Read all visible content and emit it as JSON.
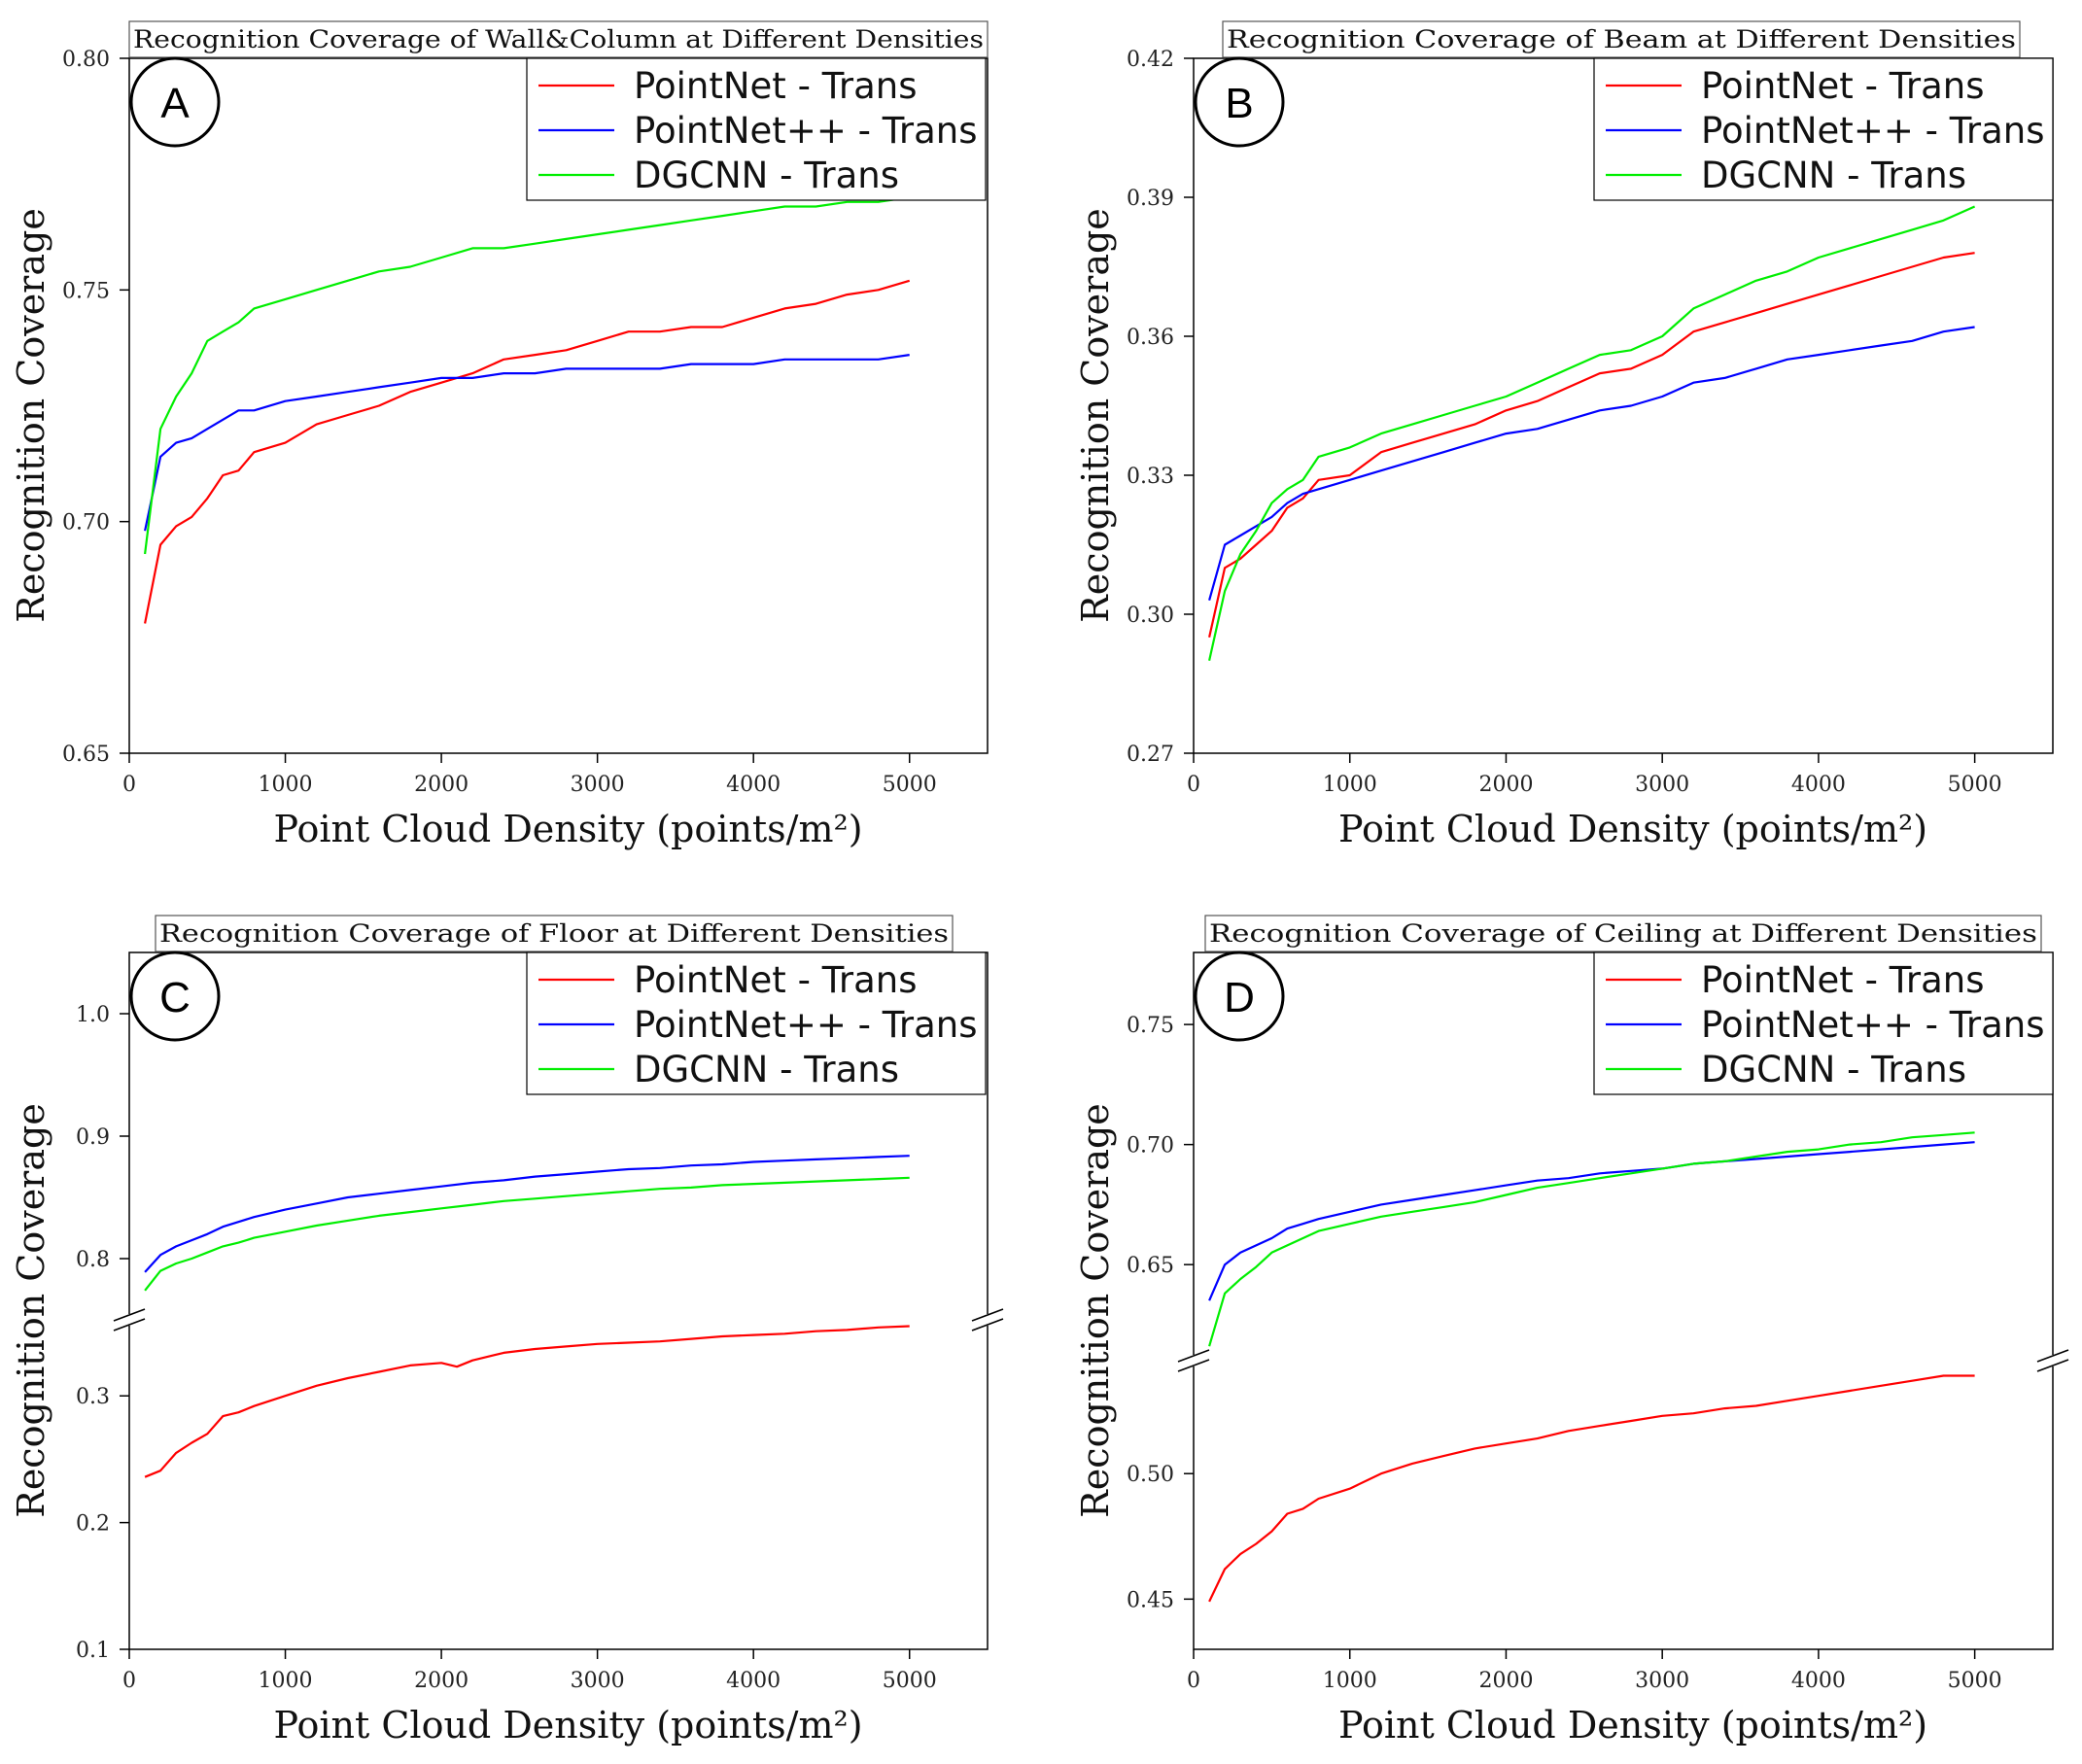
{
  "chart_data": [
    {
      "type": "line",
      "panel": "A",
      "title": "Recognition Coverage of Wall&Column at Different Densities",
      "xlabel": "Point Cloud Density (points/m²)",
      "ylabel": "Recognition Coverage",
      "xlim": [
        0,
        5500
      ],
      "ylim": [
        0.65,
        0.8
      ],
      "xticks": [
        0,
        1000,
        2000,
        3000,
        4000,
        5000
      ],
      "yticks": [
        0.65,
        0.7,
        0.75,
        0.8
      ],
      "ytick_labels": [
        "0.65",
        "0.70",
        "0.75",
        "0.80"
      ],
      "legend": "top-right",
      "series": [
        {
          "name": "PointNet - Trans",
          "color": "#ff0000",
          "x": [
            100,
            200,
            300,
            400,
            500,
            600,
            700,
            800,
            1000,
            1200,
            1400,
            1600,
            1800,
            2000,
            2200,
            2400,
            2600,
            2800,
            3000,
            3200,
            3400,
            3600,
            3800,
            4000,
            4200,
            4400,
            4600,
            4800,
            5000
          ],
          "y": [
            0.678,
            0.695,
            0.699,
            0.701,
            0.705,
            0.71,
            0.711,
            0.715,
            0.717,
            0.721,
            0.723,
            0.725,
            0.728,
            0.73,
            0.732,
            0.735,
            0.736,
            0.737,
            0.739,
            0.741,
            0.741,
            0.742,
            0.742,
            0.744,
            0.746,
            0.747,
            0.749,
            0.75,
            0.752
          ]
        },
        {
          "name": "PointNet++ - Trans",
          "color": "#0000ff",
          "x": [
            100,
            200,
            300,
            400,
            500,
            600,
            700,
            800,
            1000,
            1200,
            1400,
            1600,
            1800,
            2000,
            2200,
            2400,
            2600,
            2800,
            3000,
            3200,
            3400,
            3600,
            3800,
            4000,
            4200,
            4400,
            4600,
            4800,
            5000
          ],
          "y": [
            0.698,
            0.714,
            0.717,
            0.718,
            0.72,
            0.722,
            0.724,
            0.724,
            0.726,
            0.727,
            0.728,
            0.729,
            0.73,
            0.731,
            0.731,
            0.732,
            0.732,
            0.733,
            0.733,
            0.733,
            0.733,
            0.734,
            0.734,
            0.734,
            0.735,
            0.735,
            0.735,
            0.735,
            0.736
          ]
        },
        {
          "name": "DGCNN - Trans",
          "color": "#00ee00",
          "x": [
            100,
            200,
            300,
            400,
            500,
            600,
            700,
            800,
            1000,
            1200,
            1400,
            1600,
            1800,
            2000,
            2200,
            2400,
            2600,
            2800,
            3000,
            3200,
            3400,
            3600,
            3800,
            4000,
            4200,
            4400,
            4600,
            4800,
            5000
          ],
          "y": [
            0.693,
            0.72,
            0.727,
            0.732,
            0.739,
            0.741,
            0.743,
            0.746,
            0.748,
            0.75,
            0.752,
            0.754,
            0.755,
            0.757,
            0.759,
            0.759,
            0.76,
            0.761,
            0.762,
            0.763,
            0.764,
            0.765,
            0.766,
            0.767,
            0.768,
            0.768,
            0.769,
            0.769,
            0.77
          ]
        }
      ]
    },
    {
      "type": "line",
      "panel": "B",
      "title": "Recognition Coverage of Beam at Different Densities",
      "xlabel": "Point Cloud Density (points/m²)",
      "ylabel": "Recognition Coverage",
      "xlim": [
        0,
        5500
      ],
      "ylim": [
        0.27,
        0.42
      ],
      "xticks": [
        0,
        1000,
        2000,
        3000,
        4000,
        5000
      ],
      "yticks": [
        0.27,
        0.3,
        0.33,
        0.36,
        0.39,
        0.42
      ],
      "ytick_labels": [
        "0.27",
        "0.30",
        "0.33",
        "0.36",
        "0.39",
        "0.42"
      ],
      "legend": "top-right",
      "series": [
        {
          "name": "PointNet - Trans",
          "color": "#ff0000",
          "x": [
            100,
            200,
            300,
            400,
            500,
            600,
            700,
            800,
            1000,
            1200,
            1400,
            1600,
            1800,
            2000,
            2200,
            2400,
            2600,
            2800,
            3000,
            3200,
            3400,
            3600,
            3800,
            4000,
            4200,
            4400,
            4600,
            4800,
            5000
          ],
          "y": [
            0.295,
            0.31,
            0.312,
            0.315,
            0.318,
            0.323,
            0.325,
            0.329,
            0.33,
            0.335,
            0.337,
            0.339,
            0.341,
            0.344,
            0.346,
            0.349,
            0.352,
            0.353,
            0.356,
            0.361,
            0.363,
            0.365,
            0.367,
            0.369,
            0.371,
            0.373,
            0.375,
            0.377,
            0.378
          ]
        },
        {
          "name": "PointNet++ - Trans",
          "color": "#0000ff",
          "x": [
            100,
            200,
            300,
            400,
            500,
            600,
            700,
            800,
            1000,
            1200,
            1400,
            1600,
            1800,
            2000,
            2200,
            2400,
            2600,
            2800,
            3000,
            3200,
            3400,
            3600,
            3800,
            4000,
            4200,
            4400,
            4600,
            4800,
            5000
          ],
          "y": [
            0.303,
            0.315,
            0.317,
            0.319,
            0.321,
            0.324,
            0.326,
            0.327,
            0.329,
            0.331,
            0.333,
            0.335,
            0.337,
            0.339,
            0.34,
            0.342,
            0.344,
            0.345,
            0.347,
            0.35,
            0.351,
            0.353,
            0.355,
            0.356,
            0.357,
            0.358,
            0.359,
            0.361,
            0.362
          ]
        },
        {
          "name": "DGCNN - Trans",
          "color": "#00ee00",
          "x": [
            100,
            200,
            300,
            400,
            500,
            600,
            700,
            800,
            1000,
            1200,
            1400,
            1600,
            1800,
            2000,
            2200,
            2400,
            2600,
            2800,
            3000,
            3200,
            3400,
            3600,
            3800,
            4000,
            4200,
            4400,
            4600,
            4800,
            5000
          ],
          "y": [
            0.29,
            0.305,
            0.313,
            0.318,
            0.324,
            0.327,
            0.329,
            0.334,
            0.336,
            0.339,
            0.341,
            0.343,
            0.345,
            0.347,
            0.35,
            0.353,
            0.356,
            0.357,
            0.36,
            0.366,
            0.369,
            0.372,
            0.374,
            0.377,
            0.379,
            0.381,
            0.383,
            0.385,
            0.388
          ]
        }
      ]
    },
    {
      "type": "line",
      "panel": "C",
      "title": "Recognition Coverage of Floor at Different Densities",
      "xlabel": "Point Cloud Density (points/m²)",
      "ylabel": "Recognition Coverage",
      "xlim": [
        0,
        5500
      ],
      "broken_y_axis": true,
      "ylim_lower": [
        0.1,
        0.36
      ],
      "ylim_upper": [
        0.75,
        1.05
      ],
      "yticks": [
        0.1,
        0.2,
        0.3,
        0.8,
        0.9,
        1.0
      ],
      "ytick_labels": [
        "0.1",
        "0.2",
        "0.3",
        "0.8",
        "0.9",
        "1.0"
      ],
      "xticks": [
        0,
        1000,
        2000,
        3000,
        4000,
        5000
      ],
      "legend": "top-right",
      "series": [
        {
          "name": "PointNet - Trans",
          "color": "#ff0000",
          "x": [
            100,
            200,
            300,
            400,
            500,
            600,
            700,
            800,
            1000,
            1200,
            1400,
            1600,
            1800,
            2000,
            2100,
            2200,
            2400,
            2600,
            2800,
            3000,
            3200,
            3400,
            3600,
            3800,
            4000,
            4200,
            4400,
            4600,
            4800,
            5000
          ],
          "y": [
            0.236,
            0.241,
            0.255,
            0.263,
            0.27,
            0.284,
            0.287,
            0.292,
            0.3,
            0.308,
            0.314,
            0.319,
            0.324,
            0.326,
            0.323,
            0.328,
            0.334,
            0.337,
            0.339,
            0.341,
            0.342,
            0.343,
            0.345,
            0.347,
            0.348,
            0.349,
            0.351,
            0.352,
            0.354,
            0.355
          ]
        },
        {
          "name": "PointNet++ - Trans",
          "color": "#0000ff",
          "x": [
            100,
            200,
            300,
            400,
            500,
            600,
            700,
            800,
            1000,
            1200,
            1400,
            1600,
            1800,
            2000,
            2200,
            2400,
            2600,
            2800,
            3000,
            3200,
            3400,
            3600,
            3800,
            4000,
            4200,
            4400,
            4600,
            4800,
            5000
          ],
          "y": [
            0.789,
            0.803,
            0.81,
            0.815,
            0.82,
            0.826,
            0.83,
            0.834,
            0.84,
            0.845,
            0.85,
            0.853,
            0.856,
            0.859,
            0.862,
            0.864,
            0.867,
            0.869,
            0.871,
            0.873,
            0.874,
            0.876,
            0.877,
            0.879,
            0.88,
            0.881,
            0.882,
            0.883,
            0.884
          ]
        },
        {
          "name": "DGCNN - Trans",
          "color": "#00ee00",
          "x": [
            100,
            200,
            300,
            400,
            500,
            600,
            700,
            800,
            1000,
            1200,
            1400,
            1600,
            1800,
            2000,
            2200,
            2400,
            2600,
            2800,
            3000,
            3200,
            3400,
            3600,
            3800,
            4000,
            4200,
            4400,
            4600,
            4800,
            5000
          ],
          "y": [
            0.774,
            0.79,
            0.796,
            0.8,
            0.805,
            0.81,
            0.813,
            0.817,
            0.822,
            0.827,
            0.831,
            0.835,
            0.838,
            0.841,
            0.844,
            0.847,
            0.849,
            0.851,
            0.853,
            0.855,
            0.857,
            0.858,
            0.86,
            0.861,
            0.862,
            0.863,
            0.864,
            0.865,
            0.866
          ]
        }
      ]
    },
    {
      "type": "line",
      "panel": "D",
      "title": "Recognition Coverage of Ceiling at Different Densities",
      "xlabel": "Point Cloud Density (points/m²)",
      "ylabel": "Recognition Coverage",
      "xlim": [
        0,
        5500
      ],
      "broken_y_axis": true,
      "ylim_lower": [
        0.43,
        0.545
      ],
      "ylim_upper": [
        0.61,
        0.78
      ],
      "yticks": [
        0.45,
        0.5,
        0.65,
        0.7,
        0.75
      ],
      "ytick_labels": [
        "0.45",
        "0.50",
        "0.65",
        "0.70",
        "0.75"
      ],
      "xticks": [
        0,
        1000,
        2000,
        3000,
        4000,
        5000
      ],
      "legend": "top-right",
      "series": [
        {
          "name": "PointNet - Trans",
          "color": "#ff0000",
          "x": [
            100,
            200,
            300,
            400,
            500,
            600,
            700,
            800,
            1000,
            1200,
            1400,
            1600,
            1800,
            2000,
            2200,
            2400,
            2600,
            2800,
            3000,
            3200,
            3400,
            3600,
            3800,
            4000,
            4200,
            4400,
            4600,
            4800,
            5000
          ],
          "y": [
            0.449,
            0.462,
            0.468,
            0.472,
            0.477,
            0.484,
            0.486,
            0.49,
            0.494,
            0.5,
            0.504,
            0.507,
            0.51,
            0.512,
            0.514,
            0.517,
            0.519,
            0.521,
            0.523,
            0.524,
            0.526,
            0.527,
            0.529,
            0.531,
            0.533,
            0.535,
            0.537,
            0.539,
            0.539
          ]
        },
        {
          "name": "PointNet++ - Trans",
          "color": "#0000ff",
          "x": [
            100,
            200,
            300,
            400,
            500,
            600,
            700,
            800,
            1000,
            1200,
            1400,
            1600,
            1800,
            2000,
            2200,
            2400,
            2600,
            2800,
            3000,
            3200,
            3400,
            3600,
            3800,
            4000,
            4200,
            4400,
            4600,
            4800,
            5000
          ],
          "y": [
            0.635,
            0.65,
            0.655,
            0.658,
            0.661,
            0.665,
            0.667,
            0.669,
            0.672,
            0.675,
            0.677,
            0.679,
            0.681,
            0.683,
            0.685,
            0.686,
            0.688,
            0.689,
            0.69,
            0.692,
            0.693,
            0.694,
            0.695,
            0.696,
            0.697,
            0.698,
            0.699,
            0.7,
            0.701
          ]
        },
        {
          "name": "DGCNN - Trans",
          "color": "#00ee00",
          "x": [
            100,
            200,
            300,
            400,
            500,
            600,
            700,
            800,
            1000,
            1200,
            1400,
            1600,
            1800,
            2000,
            2200,
            2400,
            2600,
            2800,
            3000,
            3200,
            3400,
            3600,
            3800,
            4000,
            4200,
            4400,
            4600,
            4800,
            5000
          ],
          "y": [
            0.616,
            0.638,
            0.644,
            0.649,
            0.655,
            0.658,
            0.661,
            0.664,
            0.667,
            0.67,
            0.672,
            0.674,
            0.676,
            0.679,
            0.682,
            0.684,
            0.686,
            0.688,
            0.69,
            0.692,
            0.693,
            0.695,
            0.697,
            0.698,
            0.7,
            0.701,
            0.703,
            0.704,
            0.705
          ]
        }
      ]
    }
  ]
}
